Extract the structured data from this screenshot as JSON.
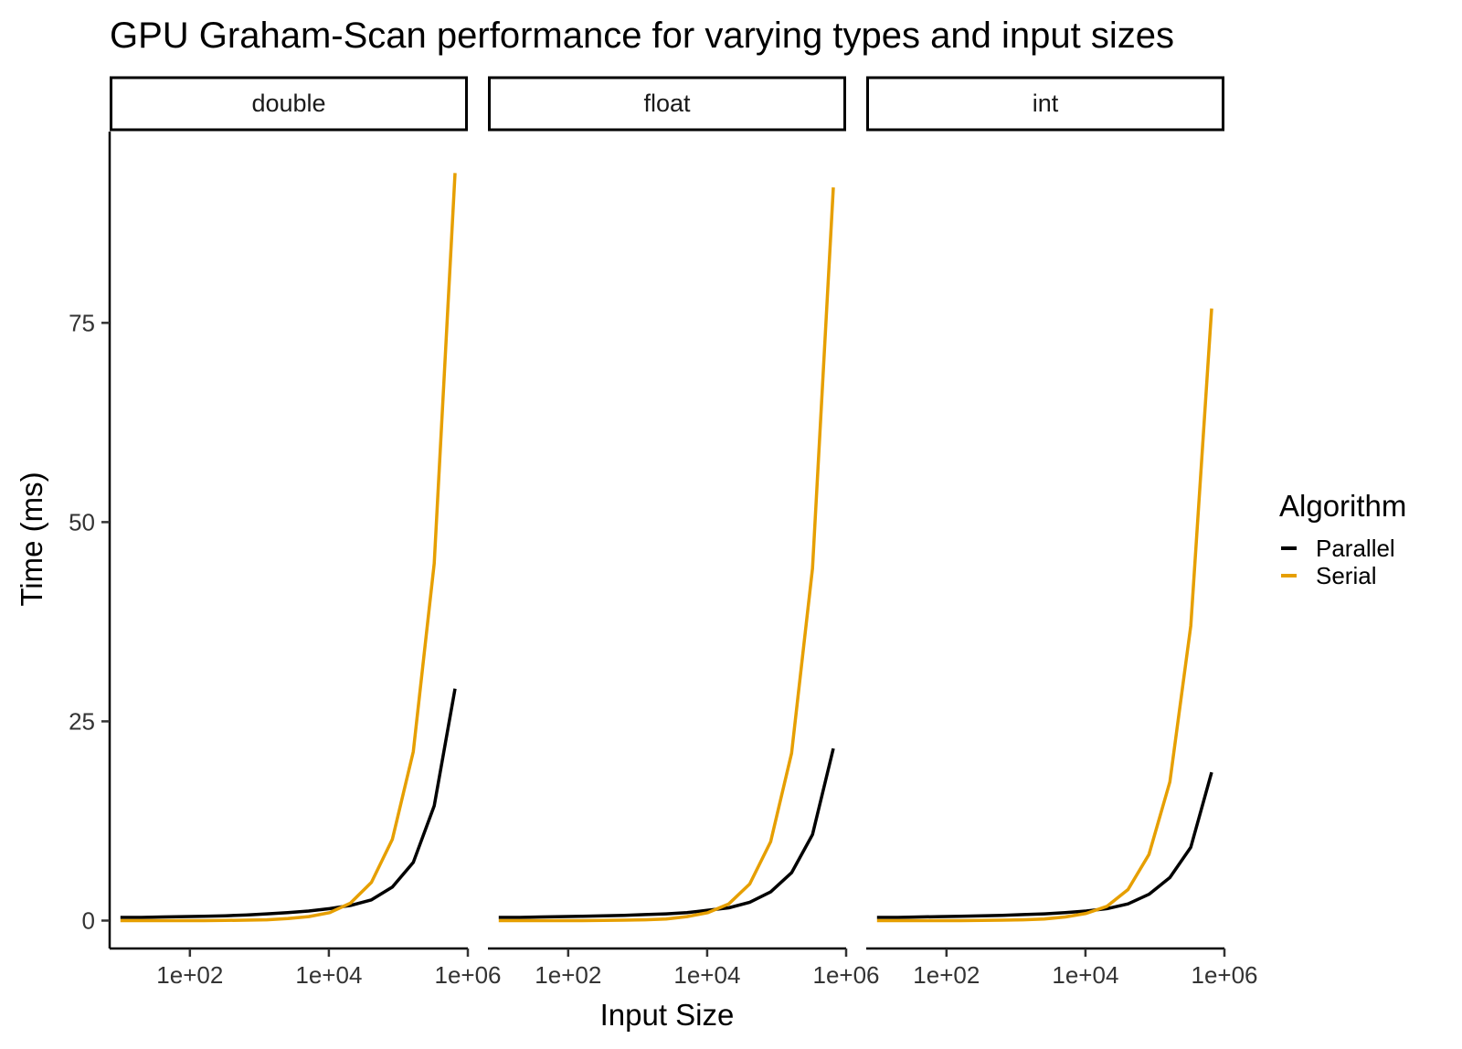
{
  "chart_data": {
    "type": "line",
    "title": "GPU Graham-Scan performance for varying types and input sizes",
    "xlabel": "Input Size",
    "ylabel": "Time (ms)",
    "x_scale": "log10",
    "xlim": [
      7,
      1000000
    ],
    "ylim": [
      -3.5,
      99
    ],
    "x_ticks": [
      100,
      10000,
      1000000
    ],
    "x_tick_labels": [
      "1e+02",
      "1e+04",
      "1e+06"
    ],
    "y_ticks": [
      0,
      25,
      50,
      75
    ],
    "y_tick_labels": [
      "0",
      "25",
      "50",
      "75"
    ],
    "grid": false,
    "legend": {
      "title": "Algorithm",
      "position": "right",
      "entries": [
        {
          "name": "Parallel",
          "color": "#000000"
        },
        {
          "name": "Serial",
          "color": "#E69F00"
        }
      ]
    },
    "x": [
      10,
      20,
      40,
      80,
      160,
      320,
      640,
      1280,
      2560,
      5120,
      10240,
      20480,
      40960,
      81920,
      163840,
      327680,
      655360
    ],
    "panels": [
      {
        "label": "double",
        "series": [
          {
            "name": "Parallel",
            "values": [
              0.4,
              0.4,
              0.45,
              0.5,
              0.55,
              0.6,
              0.7,
              0.85,
              1.0,
              1.2,
              1.5,
              1.9,
              2.6,
              4.2,
              7.3,
              14.4,
              29.1
            ]
          },
          {
            "name": "Serial",
            "values": [
              0.0,
              0.0,
              0.0,
              0.0,
              0.0,
              0.02,
              0.05,
              0.1,
              0.25,
              0.5,
              1.0,
              2.2,
              4.8,
              10.2,
              21.2,
              44.8,
              93.8
            ]
          }
        ]
      },
      {
        "label": "float",
        "series": [
          {
            "name": "Parallel",
            "values": [
              0.4,
              0.4,
              0.45,
              0.5,
              0.55,
              0.6,
              0.65,
              0.75,
              0.85,
              1.0,
              1.3,
              1.6,
              2.3,
              3.6,
              6.0,
              10.8,
              21.6
            ]
          },
          {
            "name": "Serial",
            "values": [
              0.0,
              0.0,
              0.0,
              0.0,
              0.0,
              0.02,
              0.05,
              0.1,
              0.2,
              0.5,
              1.0,
              2.1,
              4.6,
              9.9,
              21.0,
              44.2,
              92.0
            ]
          }
        ]
      },
      {
        "label": "int",
        "series": [
          {
            "name": "Parallel",
            "values": [
              0.4,
              0.4,
              0.45,
              0.5,
              0.55,
              0.6,
              0.65,
              0.75,
              0.85,
              1.0,
              1.2,
              1.5,
              2.1,
              3.3,
              5.4,
              9.2,
              18.6
            ]
          },
          {
            "name": "Serial",
            "values": [
              0.0,
              0.0,
              0.0,
              0.0,
              0.0,
              0.02,
              0.05,
              0.1,
              0.2,
              0.45,
              0.9,
              1.8,
              3.9,
              8.3,
              17.4,
              37.0,
              76.8
            ]
          }
        ]
      }
    ]
  }
}
